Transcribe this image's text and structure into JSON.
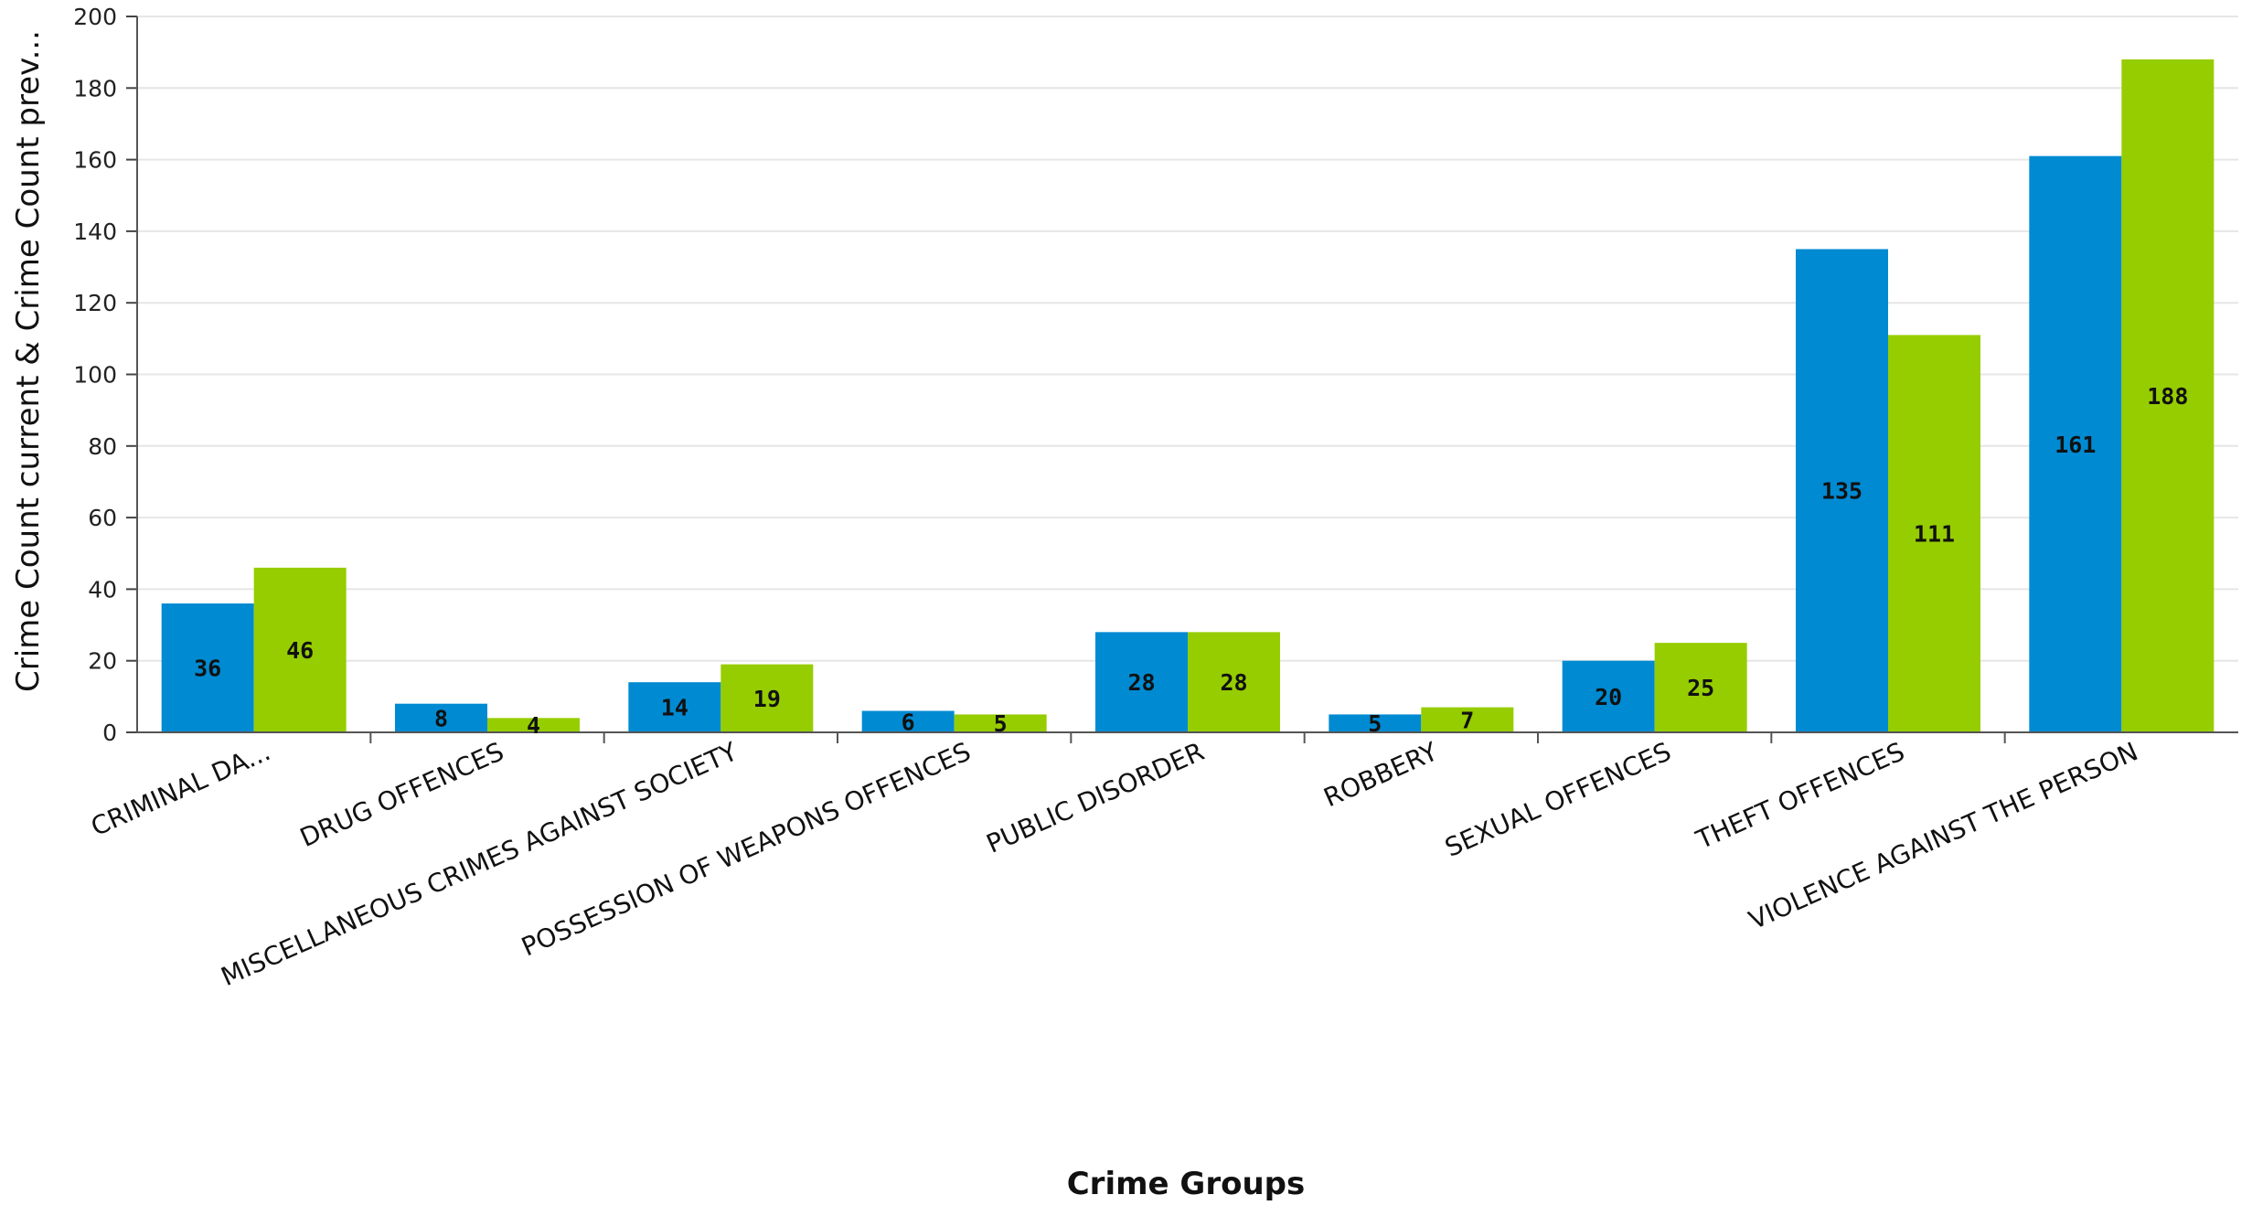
{
  "chart_data": {
    "type": "bar",
    "xlabel": "Crime Groups",
    "ylabel": "Crime Count current & Crime Count prev...",
    "ylim": [
      0,
      200
    ],
    "y_ticks": [
      0,
      20,
      40,
      60,
      80,
      100,
      120,
      140,
      160,
      180,
      200
    ],
    "grid": true,
    "categories": [
      "CRIMINAL DA...",
      "DRUG OFFENCES",
      "MISCELLANEOUS CRIMES AGAINST SOCIETY",
      "POSSESSION OF WEAPONS OFFENCES",
      "PUBLIC DISORDER",
      "ROBBERY",
      "SEXUAL OFFENCES",
      "THEFT OFFENCES",
      "VIOLENCE AGAINST THE PERSON"
    ],
    "series": [
      {
        "values": [
          36,
          8,
          14,
          6,
          28,
          5,
          20,
          135,
          161
        ],
        "color": "#008ad2"
      },
      {
        "values": [
          46,
          4,
          19,
          5,
          28,
          7,
          25,
          111,
          188
        ],
        "color": "#96cd00"
      }
    ]
  }
}
